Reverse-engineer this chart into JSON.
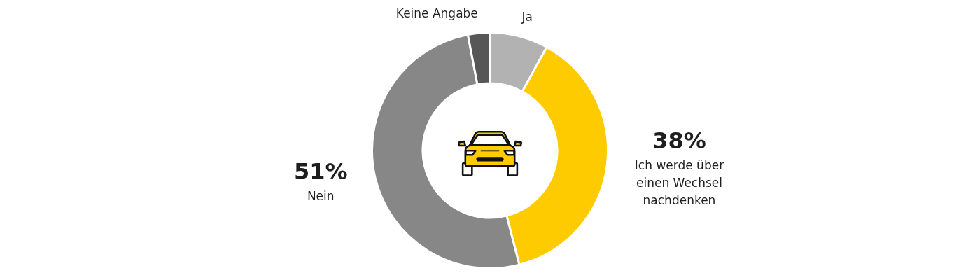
{
  "chart_data": {
    "type": "donut",
    "categories": [
      "Ja",
      "Ich werde über einen Wechsel nachdenken",
      "Nein",
      "Keine Angabe"
    ],
    "values": [
      8,
      38,
      51,
      3
    ],
    "colors": [
      "#b2b2b2",
      "#fecb00",
      "#878787",
      "#575757"
    ],
    "value_labels": [
      null,
      "38%",
      "51%",
      null
    ]
  }
}
